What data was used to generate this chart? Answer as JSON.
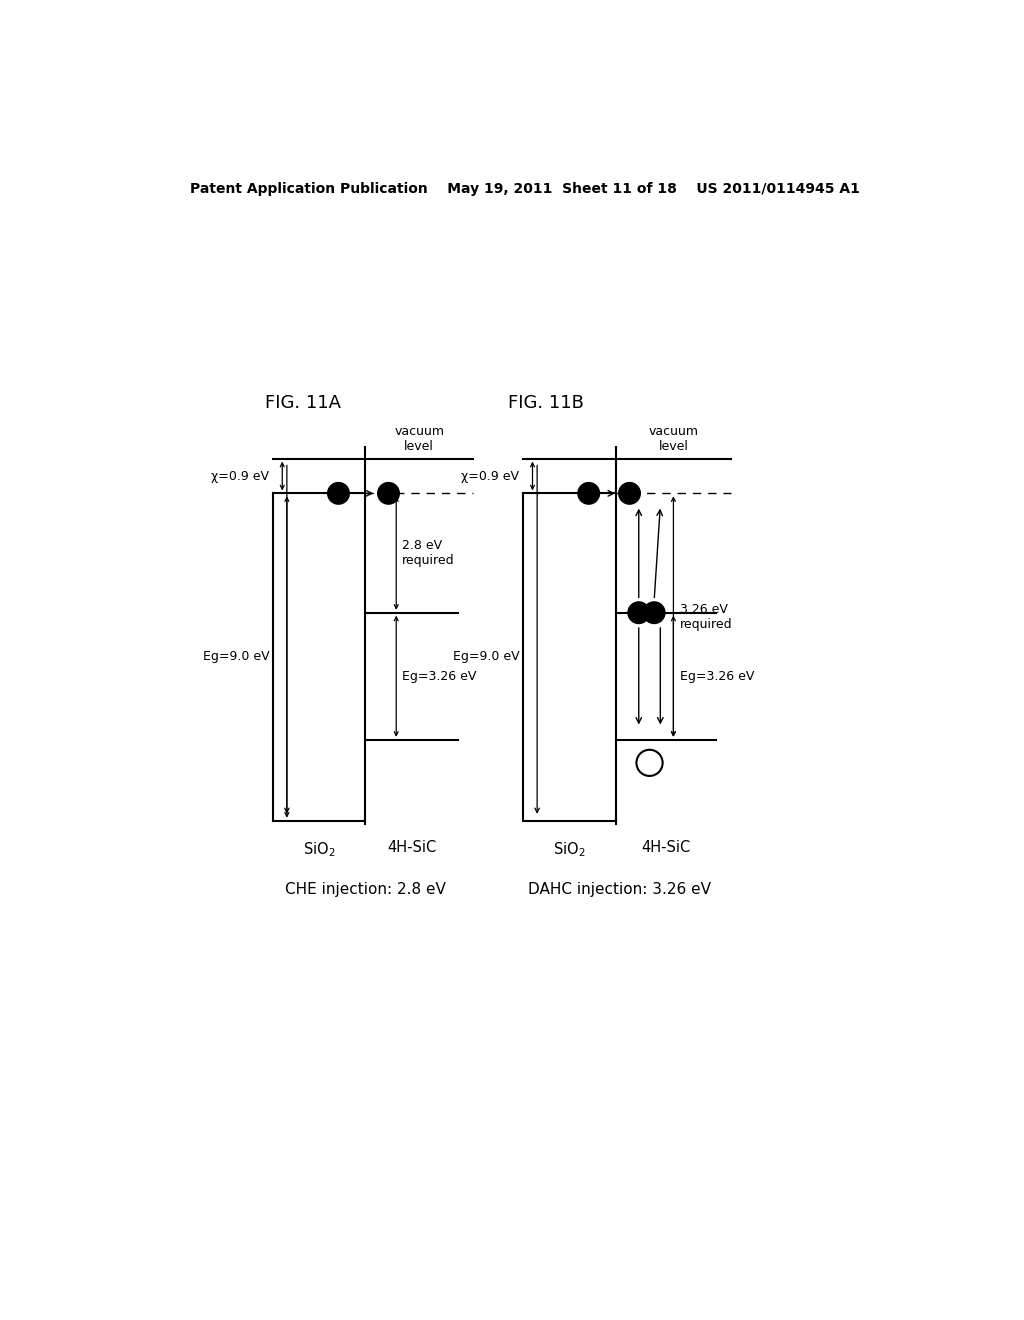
{
  "header_text": "Patent Application Publication    May 19, 2011  Sheet 11 of 18    US 2011/0114945 A1",
  "fig11a_label": "FIG. 11A",
  "fig11b_label": "FIG. 11B",
  "caption_a": "CHE injection: 2.8 eV",
  "caption_b": "DAHC injection: 3.26 eV",
  "bg_color": "#ffffff",
  "line_color": "#000000"
}
